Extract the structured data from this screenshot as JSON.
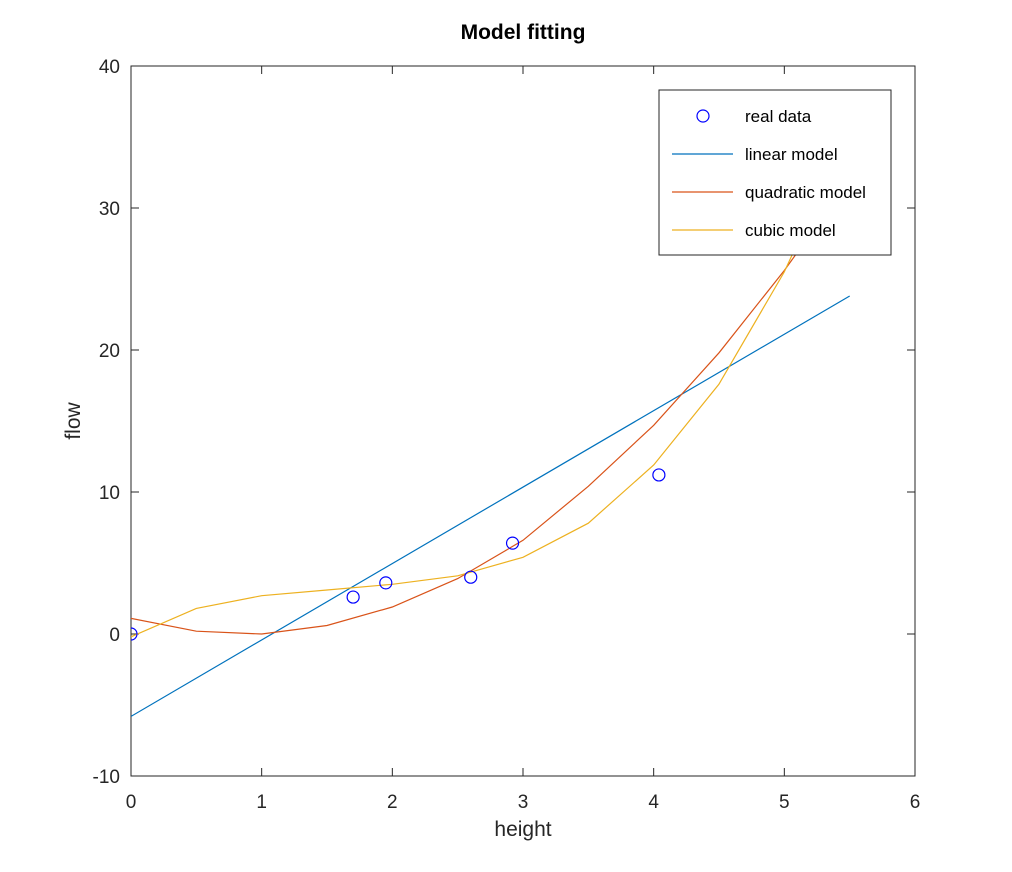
{
  "chart_data": {
    "type": "line",
    "title": "Model fitting",
    "xlabel": "height",
    "ylabel": "flow",
    "xlim": [
      0,
      6
    ],
    "ylim": [
      -10,
      40
    ],
    "xticks": [
      0,
      1,
      2,
      3,
      4,
      5,
      6
    ],
    "yticks": [
      -10,
      0,
      10,
      20,
      30,
      40
    ],
    "grid": false,
    "legend_position": "top-right",
    "series": [
      {
        "name": "real data",
        "kind": "markers",
        "marker": "circle",
        "color": "#0000ff",
        "x": [
          0,
          1.7,
          1.95,
          2.6,
          2.92,
          4.04
        ],
        "y": [
          0,
          2.6,
          3.6,
          4.0,
          6.4,
          11.2
        ]
      },
      {
        "name": "linear model",
        "kind": "line",
        "color": "#0072bd",
        "x": [
          0,
          5.5
        ],
        "y": [
          -5.8,
          23.8
        ]
      },
      {
        "name": "quadratic model",
        "kind": "line",
        "color": "#d95319",
        "x": [
          0,
          0.5,
          1.0,
          1.5,
          2.0,
          2.5,
          3.0,
          3.5,
          4.0,
          4.5,
          5.0,
          5.5
        ],
        "y": [
          1.1,
          0.2,
          0.0,
          0.6,
          1.9,
          3.9,
          6.6,
          10.4,
          14.7,
          19.8,
          25.6,
          32.0
        ]
      },
      {
        "name": "cubic model",
        "kind": "line",
        "color": "#edb120",
        "x": [
          0,
          0.5,
          1.0,
          1.5,
          2.0,
          2.5,
          3.0,
          3.5,
          4.0,
          4.5,
          5.0,
          5.5
        ],
        "y": [
          -0.2,
          1.8,
          2.7,
          3.1,
          3.5,
          4.1,
          5.4,
          7.8,
          11.9,
          17.6,
          25.5,
          35.5
        ]
      }
    ]
  }
}
